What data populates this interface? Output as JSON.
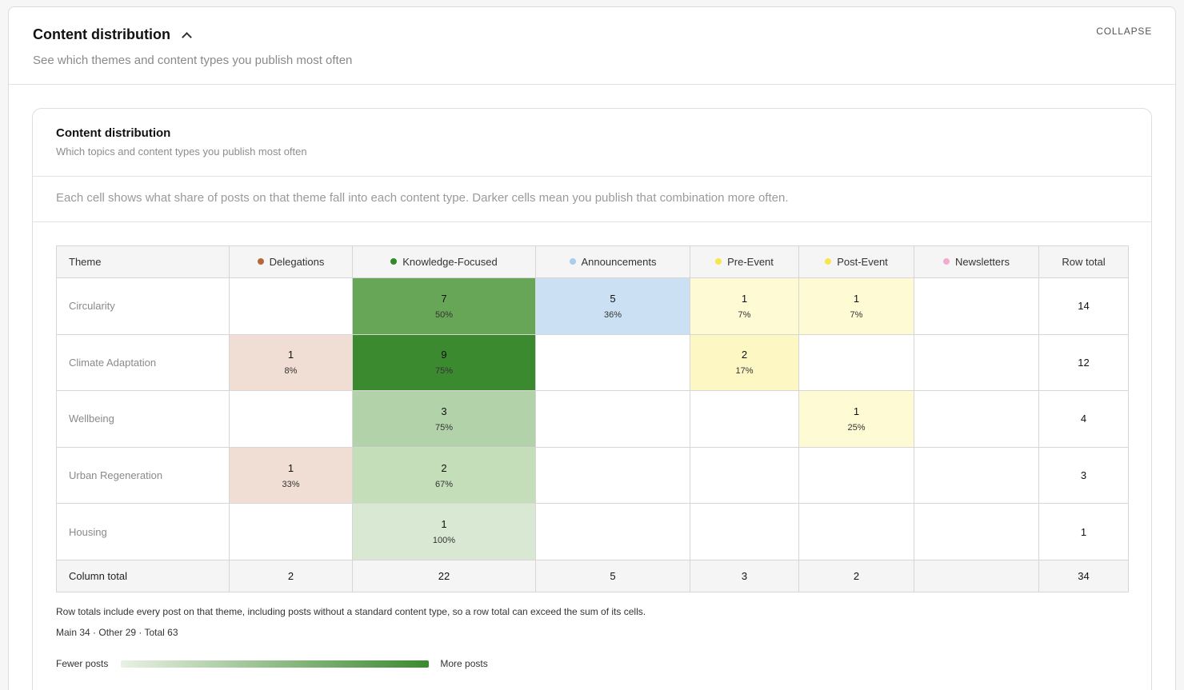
{
  "outer": {
    "title": "Content distribution",
    "subtitle": "See which themes and content types you publish most often",
    "collapse_label": "COLLAPSE"
  },
  "card": {
    "title": "Content distribution",
    "subtitle": "Which topics and content types you publish most often",
    "description": "Each cell shows what share of posts on that theme fall into each content type. Darker cells mean you publish that combination more often."
  },
  "table": {
    "theme_header": "Theme",
    "row_total_header": "Row total",
    "column_total_label": "Column total",
    "columns": [
      {
        "label": "Delegations",
        "color": "#b5693a"
      },
      {
        "label": "Knowledge-Focused",
        "color": "#2f8a2a"
      },
      {
        "label": "Announcements",
        "color": "#a9cdea"
      },
      {
        "label": "Pre-Event",
        "color": "#f6e64a"
      },
      {
        "label": "Post-Event",
        "color": "#f6e64a"
      },
      {
        "label": "Newsletters",
        "color": "#f4a9cf"
      }
    ],
    "rows": [
      {
        "theme": "Circularity",
        "cells": [
          {
            "count": "",
            "pct": "",
            "bg": ""
          },
          {
            "count": "7",
            "pct": "50%",
            "bg": "#68a657"
          },
          {
            "count": "5",
            "pct": "36%",
            "bg": "#cbe1f3"
          },
          {
            "count": "1",
            "pct": "7%",
            "bg": "#fefad3"
          },
          {
            "count": "1",
            "pct": "7%",
            "bg": "#fefad3"
          },
          {
            "count": "",
            "pct": "",
            "bg": ""
          }
        ],
        "total": "14"
      },
      {
        "theme": "Climate Adaptation",
        "cells": [
          {
            "count": "1",
            "pct": "8%",
            "bg": "#f0ddd3"
          },
          {
            "count": "9",
            "pct": "75%",
            "bg": "#3c8a2f"
          },
          {
            "count": "",
            "pct": "",
            "bg": ""
          },
          {
            "count": "2",
            "pct": "17%",
            "bg": "#fdf7c4"
          },
          {
            "count": "",
            "pct": "",
            "bg": ""
          },
          {
            "count": "",
            "pct": "",
            "bg": ""
          }
        ],
        "total": "12"
      },
      {
        "theme": "Wellbeing",
        "cells": [
          {
            "count": "",
            "pct": "",
            "bg": ""
          },
          {
            "count": "3",
            "pct": "75%",
            "bg": "#b2d3a9"
          },
          {
            "count": "",
            "pct": "",
            "bg": ""
          },
          {
            "count": "",
            "pct": "",
            "bg": ""
          },
          {
            "count": "1",
            "pct": "25%",
            "bg": "#fefad3"
          },
          {
            "count": "",
            "pct": "",
            "bg": ""
          }
        ],
        "total": "4"
      },
      {
        "theme": "Urban Regeneration",
        "cells": [
          {
            "count": "1",
            "pct": "33%",
            "bg": "#f0ddd3"
          },
          {
            "count": "2",
            "pct": "67%",
            "bg": "#c5deba"
          },
          {
            "count": "",
            "pct": "",
            "bg": ""
          },
          {
            "count": "",
            "pct": "",
            "bg": ""
          },
          {
            "count": "",
            "pct": "",
            "bg": ""
          },
          {
            "count": "",
            "pct": "",
            "bg": ""
          }
        ],
        "total": "3"
      },
      {
        "theme": "Housing",
        "cells": [
          {
            "count": "",
            "pct": "",
            "bg": ""
          },
          {
            "count": "1",
            "pct": "100%",
            "bg": "#d9e8d3"
          },
          {
            "count": "",
            "pct": "",
            "bg": ""
          },
          {
            "count": "",
            "pct": "",
            "bg": ""
          },
          {
            "count": "",
            "pct": "",
            "bg": ""
          },
          {
            "count": "",
            "pct": "",
            "bg": ""
          }
        ],
        "total": "1"
      }
    ],
    "column_totals": [
      "2",
      "22",
      "5",
      "3",
      "2",
      ""
    ],
    "grand_total": "34"
  },
  "footnote": "Row totals include every post on that theme, including posts without a standard content type, so a row total can exceed the sum of its cells.",
  "summary": "Main 34 · Other 29 · Total 63",
  "legend": {
    "low_label": "Fewer posts",
    "high_label": "More posts",
    "low_color": "#e8f1e4",
    "high_color": "#3c8a2f"
  }
}
